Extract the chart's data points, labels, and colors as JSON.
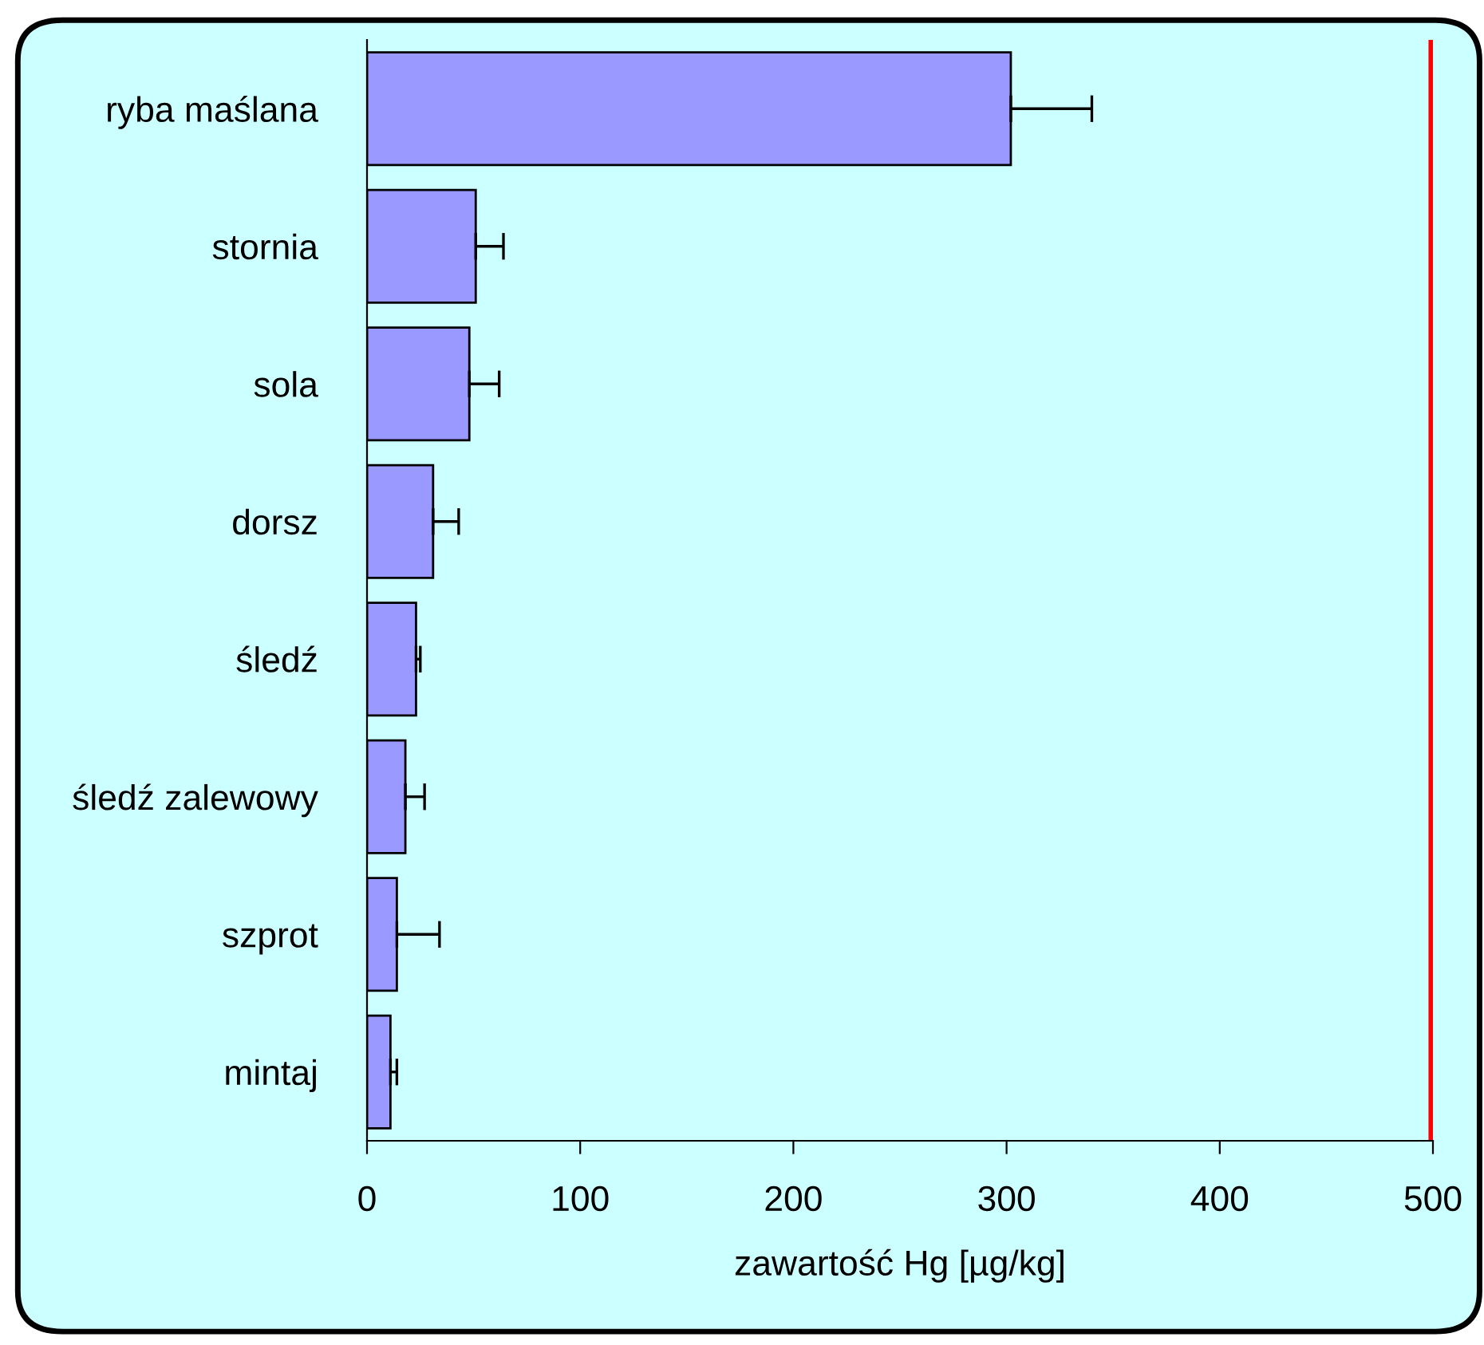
{
  "chart_data": {
    "type": "bar",
    "orientation": "horizontal",
    "categories": [
      "ryba maślana",
      "stornia",
      "sola",
      "dorsz",
      "śledź",
      "śledź zalewowy",
      "szprot",
      "mintaj"
    ],
    "values": [
      302,
      51,
      48,
      31,
      23,
      18,
      14,
      11
    ],
    "errors": [
      [
        302,
        340
      ],
      [
        51,
        64
      ],
      [
        48,
        62
      ],
      [
        31,
        43
      ],
      [
        23,
        25
      ],
      [
        18,
        27
      ],
      [
        14,
        34
      ],
      [
        11,
        14
      ]
    ],
    "color": "#9999ff",
    "xlabel": "zawartość Hg [µg/kg]",
    "xlim": [
      0,
      500
    ],
    "xticks": [
      0,
      100,
      200,
      300,
      400,
      500
    ],
    "ref_lines": [
      {
        "axis": "x",
        "value": 500,
        "color": "#ff0000",
        "line_style": "solid"
      }
    ]
  }
}
